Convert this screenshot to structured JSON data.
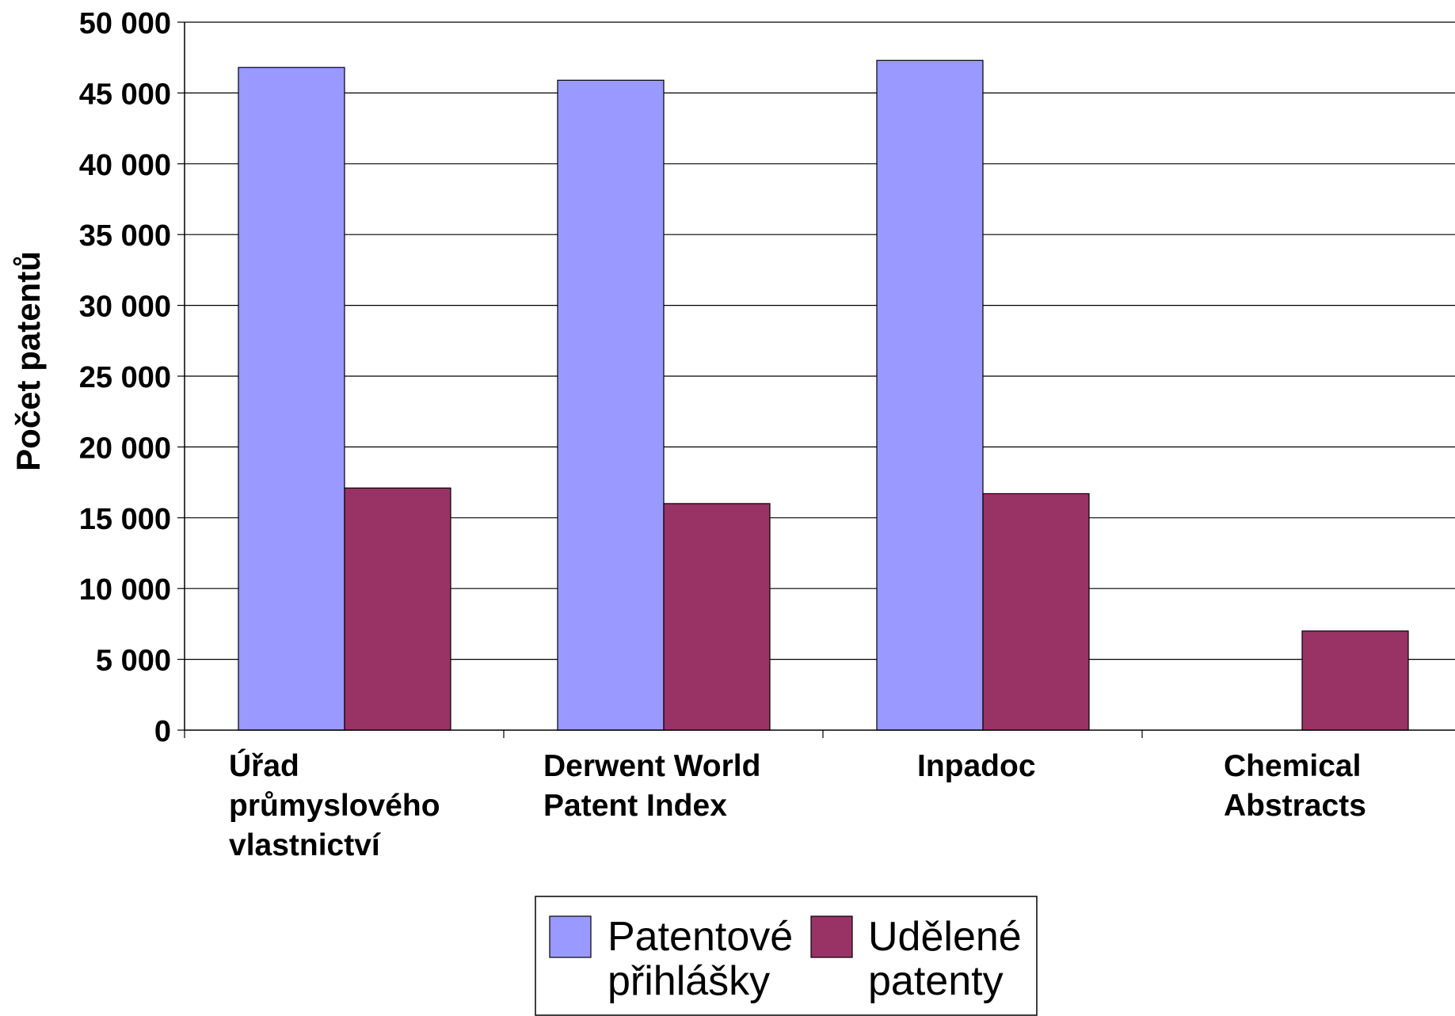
{
  "chart_data": {
    "type": "bar",
    "title": "",
    "xlabel": "",
    "ylabel": "Počet patentů",
    "ylim": [
      0,
      50000
    ],
    "yticks": [
      {
        "value": 0,
        "label": "0"
      },
      {
        "value": 5000,
        "label": "5 000"
      },
      {
        "value": 10000,
        "label": "10 000"
      },
      {
        "value": 15000,
        "label": "15 000"
      },
      {
        "value": 20000,
        "label": "20 000"
      },
      {
        "value": 25000,
        "label": "25 000"
      },
      {
        "value": 30000,
        "label": "30 000"
      },
      {
        "value": 35000,
        "label": "35 000"
      },
      {
        "value": 40000,
        "label": "40 000"
      },
      {
        "value": 45000,
        "label": "45 000"
      },
      {
        "value": 50000,
        "label": "50 000"
      }
    ],
    "categories": [
      [
        "Úřad",
        "průmyslového",
        "vlastnictví"
      ],
      [
        "Derwent World",
        "Patent Index"
      ],
      [
        "Inpadoc"
      ],
      [
        "Chemical",
        "Abstracts"
      ]
    ],
    "series": [
      {
        "name": [
          "Patentové",
          "přihlášky"
        ],
        "color": "#9999ff",
        "values": [
          46800,
          45900,
          47300,
          0
        ]
      },
      {
        "name": [
          "Udělené",
          "patenty"
        ],
        "color": "#993366",
        "values": [
          17100,
          16000,
          16700,
          7000
        ]
      }
    ],
    "grid": true,
    "legend_position": "bottom"
  }
}
